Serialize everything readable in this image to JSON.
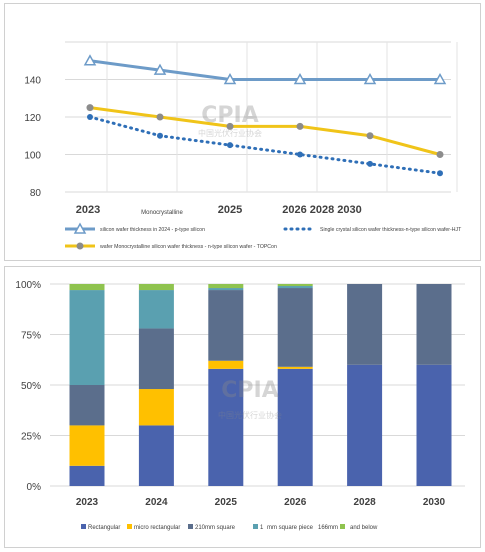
{
  "chart_data": [
    {
      "type": "line",
      "x": [
        "2023",
        "2024",
        "2025",
        "2026",
        "2028",
        "2030"
      ],
      "x_tick_labels": [
        "2023",
        "Monocrystalline",
        "2025",
        "2026 2028 2030"
      ],
      "ylim": [
        80,
        160
      ],
      "y_ticks": [
        "80",
        "100",
        "120",
        "140"
      ],
      "grid": true,
      "legend_position": "bottom",
      "series": [
        {
          "name": "silicon wafer thickness in 2024 - p-type silicon",
          "values": [
            150,
            145,
            140,
            140,
            140,
            140
          ],
          "color": "#6d9bc8",
          "marker": "triangle",
          "style": "solid"
        },
        {
          "name": "Single crystal silicon wafer thickness-n-type silicon wafer-HJT",
          "values": [
            120,
            110,
            105,
            100,
            95,
            90
          ],
          "color": "#2f6fb7",
          "marker": "circle",
          "style": "dotted"
        },
        {
          "name": "wafer Monocrystalline silicon wafer thickness - n-type silicon wafer - TOPCon",
          "values": [
            125,
            120,
            115,
            115,
            110,
            100
          ],
          "color": "#f0c419",
          "marker": "circle-grey",
          "style": "solid"
        }
      ],
      "watermark": {
        "text": "CPIA",
        "subtext": "中国光伏行业协会"
      }
    },
    {
      "type": "bar",
      "stacked": true,
      "categories": [
        "2023",
        "2024",
        "2025",
        "2026",
        "2028",
        "2030"
      ],
      "ylim": [
        0,
        100
      ],
      "y_ticks": [
        "0%",
        "25%",
        "50%",
        "75%",
        "100%"
      ],
      "legend_position": "bottom",
      "series": [
        {
          "name": "Rectangular",
          "values": [
            10,
            30,
            58,
            58,
            60,
            60
          ],
          "color": "#4a63ad"
        },
        {
          "name": "micro rectangular",
          "values": [
            20,
            18,
            4,
            1,
            0,
            0
          ],
          "color": "#ffc000"
        },
        {
          "name": "210mm square",
          "values": [
            20,
            30,
            35,
            39,
            40,
            40
          ],
          "color": "#5b6e8c"
        },
        {
          "name": "182mm square piece",
          "values": [
            47,
            19,
            1,
            1,
            0,
            0
          ],
          "color": "#5aa0b0"
        },
        {
          "name": "166mm and below",
          "values": [
            3,
            3,
            2,
            1,
            0,
            0
          ],
          "color": "#8fc34f"
        }
      ],
      "legend_labels": [
        "Rectangular",
        "micro rectangular",
        "210mm square",
        "1",
        "mm square piece",
        "166mm",
        "and below"
      ],
      "watermark": {
        "text": "CPIA",
        "subtext": "中国光伏行业协会"
      }
    }
  ]
}
